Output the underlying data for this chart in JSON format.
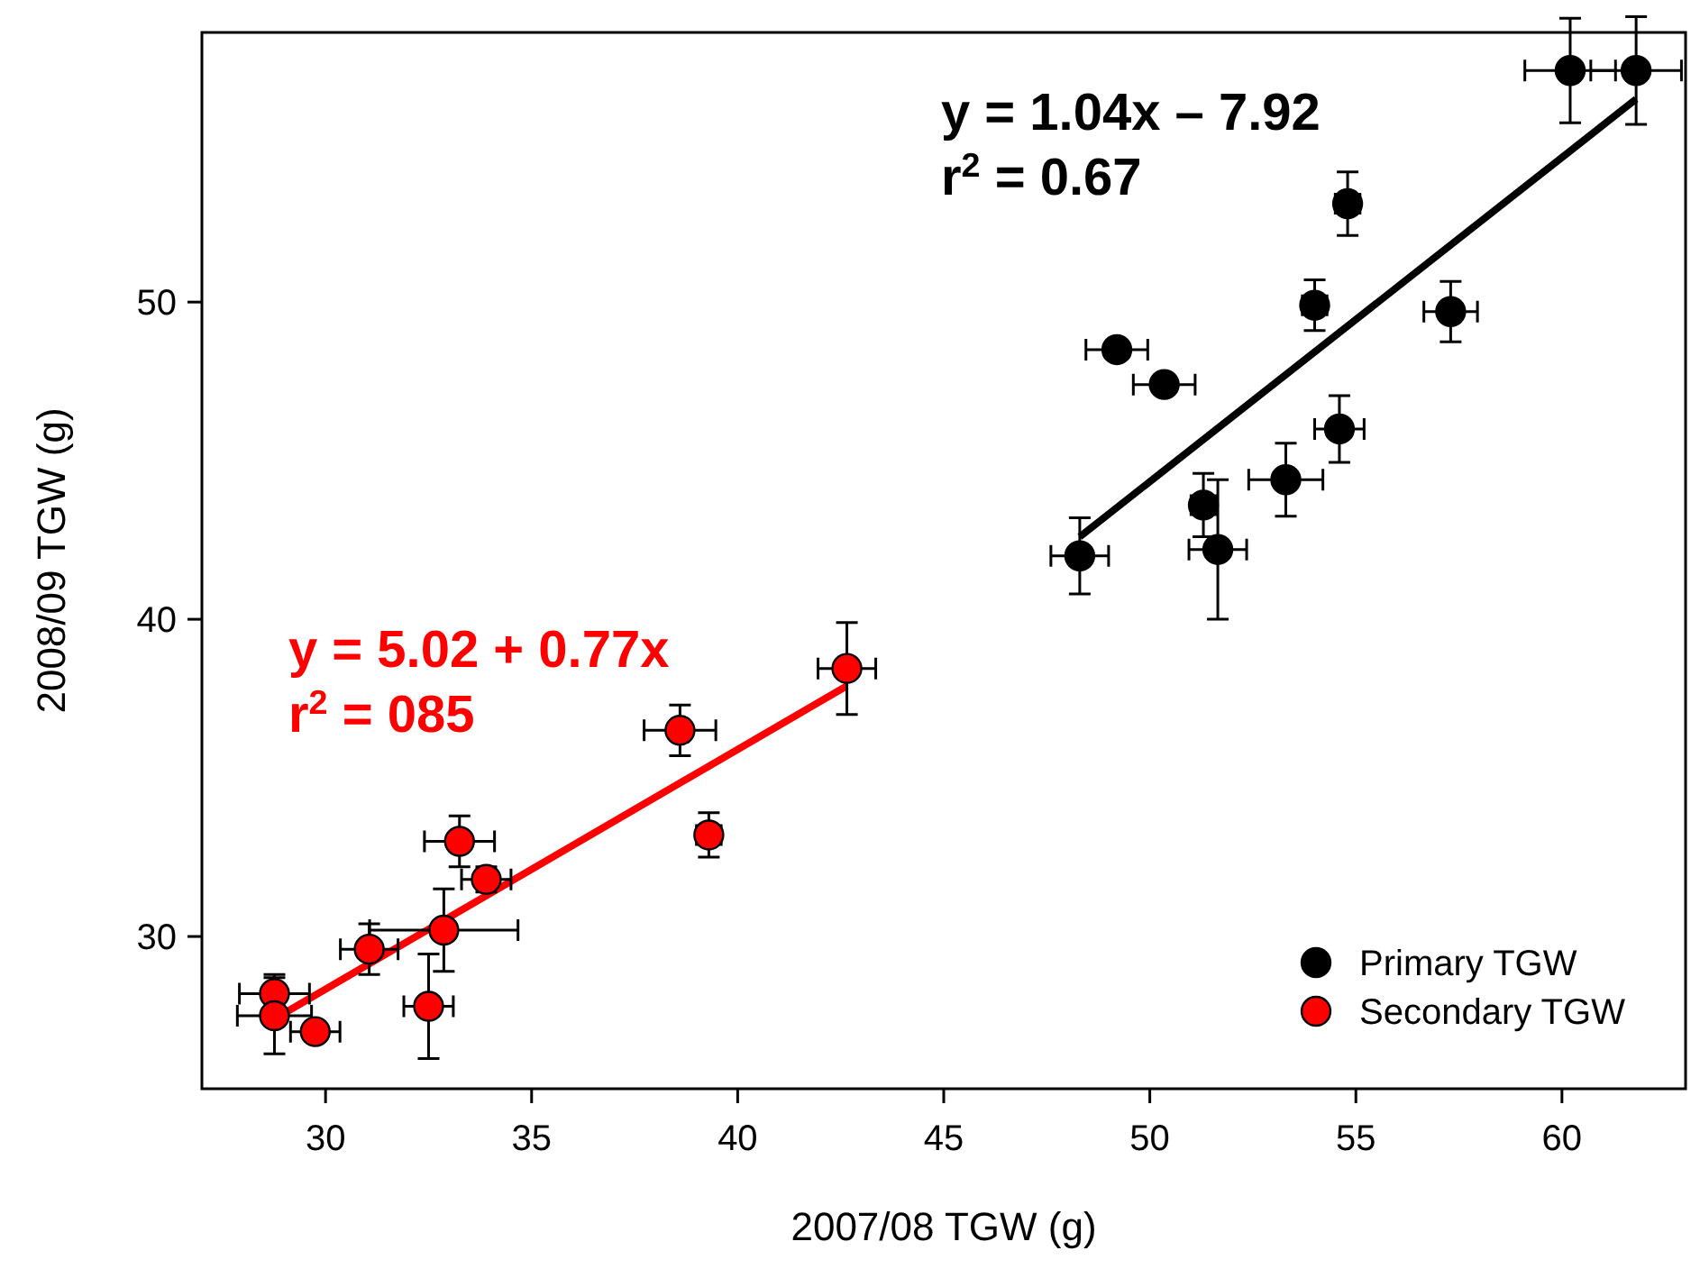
{
  "chart_data": {
    "type": "scatter",
    "xlabel": "2007/08 TGW (g)",
    "ylabel": "2008/09 TGW (g)",
    "xlim": [
      27,
      63
    ],
    "ylim": [
      25.2,
      58.5
    ],
    "xticks": [
      30,
      35,
      40,
      45,
      50,
      55,
      60
    ],
    "yticks": [
      30,
      40,
      50
    ],
    "grid": false,
    "legend": "bottom right",
    "marker": "circle",
    "series": [
      {
        "name": "Primary TGW",
        "color": "#000000",
        "x": [
          60.2,
          61.8,
          54.8,
          54.0,
          57.3,
          49.2,
          50.35,
          54.6,
          53.3,
          51.3,
          51.65,
          48.3
        ],
        "values": [
          57.3,
          57.3,
          53.1,
          49.9,
          49.7,
          48.5,
          47.4,
          46.0,
          44.4,
          43.6,
          42.2,
          42.0
        ],
        "xerrors": [
          1.1,
          1.1,
          0.3,
          0.3,
          0.65,
          0.75,
          0.75,
          0.6,
          0.9,
          0.3,
          0.7,
          0.7
        ],
        "errors": [
          1.65,
          1.7,
          1.0,
          0.8,
          0.95,
          0.2,
          0.3,
          1.05,
          1.15,
          1.0,
          2.2,
          1.2
        ]
      },
      {
        "name": "Secondary TGW",
        "color": "#ff0000",
        "x": [
          28.76,
          28.76,
          29.75,
          31.06,
          32.5,
          32.87,
          33.25,
          33.9,
          38.6,
          39.3,
          42.65
        ],
        "values": [
          28.2,
          27.5,
          27.0,
          29.6,
          27.8,
          30.2,
          33.0,
          31.8,
          36.5,
          33.2,
          38.45
        ],
        "xerrors": [
          0.85,
          0.9,
          0.6,
          0.7,
          0.6,
          1.8,
          0.85,
          0.6,
          0.87,
          0.3,
          0.7
        ],
        "errors": [
          0.6,
          1.2,
          0.3,
          0.8,
          1.65,
          1.3,
          0.8,
          0.4,
          0.8,
          0.7,
          1.45
        ]
      },
      {
        "type": "line",
        "marker": "none",
        "color": "#000000",
        "x": [
          48.3,
          61.8
        ],
        "values": [
          42.6,
          56.4
        ]
      },
      {
        "type": "line",
        "marker": "none",
        "color": "#ff0000",
        "x": [
          28.76,
          42.65
        ],
        "values": [
          27.4,
          37.9
        ]
      }
    ],
    "annotations": [
      "y = 1.04x – 7.92",
      "r$^{2}$ = 0.67",
      "y = 5.02 + 0.77x",
      "r$^{2}$ = 085"
    ]
  }
}
